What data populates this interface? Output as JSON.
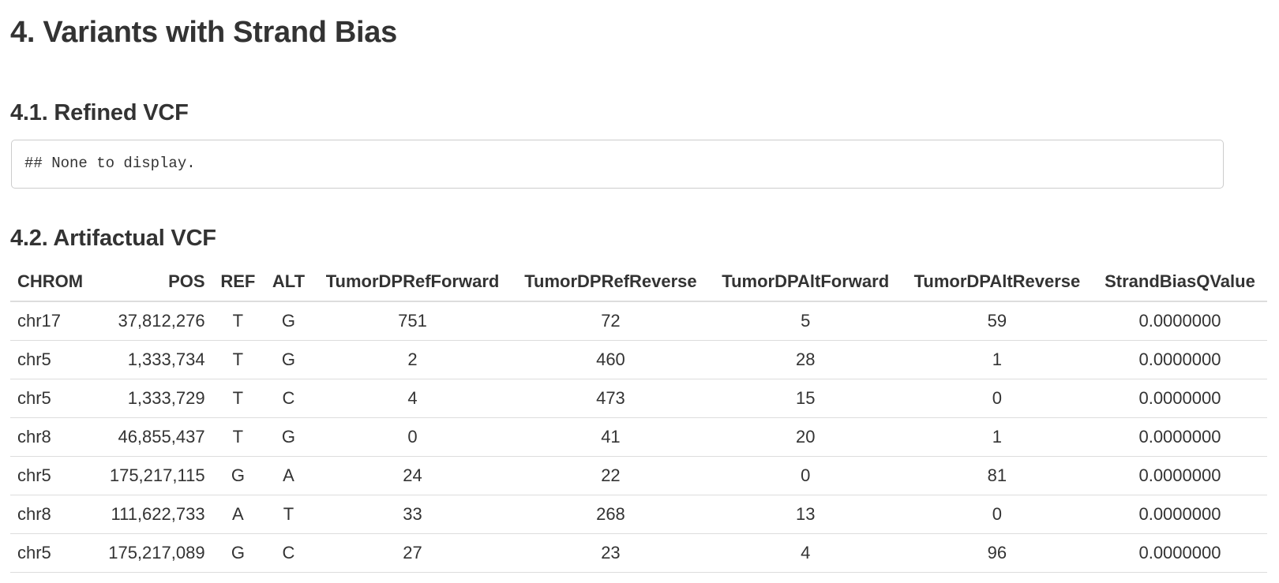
{
  "heading": "4. Variants with Strand Bias",
  "refined": {
    "title": "4.1. Refined VCF",
    "output": "## None to display."
  },
  "artifactual": {
    "title": "4.2. Artifactual VCF",
    "columns": [
      "CHROM",
      "POS",
      "REF",
      "ALT",
      "TumorDPRefForward",
      "TumorDPRefReverse",
      "TumorDPAltForward",
      "TumorDPAltReverse",
      "StrandBiasQValue"
    ],
    "rows": [
      [
        "chr17",
        "37,812,276",
        "T",
        "G",
        "751",
        "72",
        "5",
        "59",
        "0.0000000"
      ],
      [
        "chr5",
        "1,333,734",
        "T",
        "G",
        "2",
        "460",
        "28",
        "1",
        "0.0000000"
      ],
      [
        "chr5",
        "1,333,729",
        "T",
        "C",
        "4",
        "473",
        "15",
        "0",
        "0.0000000"
      ],
      [
        "chr8",
        "46,855,437",
        "T",
        "G",
        "0",
        "41",
        "20",
        "1",
        "0.0000000"
      ],
      [
        "chr5",
        "175,217,115",
        "G",
        "A",
        "24",
        "22",
        "0",
        "81",
        "0.0000000"
      ],
      [
        "chr8",
        "111,622,733",
        "A",
        "T",
        "33",
        "268",
        "13",
        "0",
        "0.0000000"
      ],
      [
        "chr5",
        "175,217,089",
        "G",
        "C",
        "27",
        "23",
        "4",
        "96",
        "0.0000000"
      ]
    ]
  }
}
